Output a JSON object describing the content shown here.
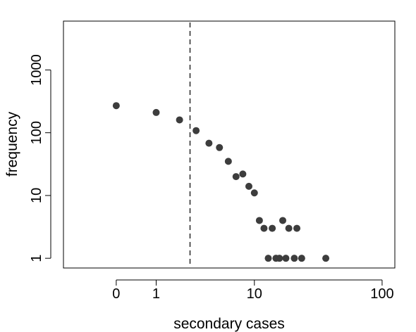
{
  "chart_data": {
    "type": "scatter",
    "title": "",
    "xlabel": "secondary cases",
    "ylabel": "frequency",
    "x_scale": "log(x+1)",
    "y_scale": "log",
    "x_ticks": [
      0,
      1,
      10,
      100
    ],
    "x_tick_labels": [
      "0",
      "1",
      "10",
      "100"
    ],
    "y_ticks": [
      1,
      10,
      100,
      1000
    ],
    "y_tick_labels": [
      "1",
      "10",
      "100",
      "1000"
    ],
    "xlim": [
      -0.6,
      125
    ],
    "ylim": [
      0.7,
      6000
    ],
    "grid": false,
    "legend": "none",
    "reference_line": {
      "x": 2.6,
      "style": "dashed"
    },
    "point_color": "#3d3d3d",
    "points": [
      {
        "x": 0,
        "y": 270
      },
      {
        "x": 1,
        "y": 210
      },
      {
        "x": 2,
        "y": 160
      },
      {
        "x": 3,
        "y": 108
      },
      {
        "x": 4,
        "y": 68
      },
      {
        "x": 5,
        "y": 58
      },
      {
        "x": 6,
        "y": 35
      },
      {
        "x": 7,
        "y": 20
      },
      {
        "x": 8,
        "y": 22
      },
      {
        "x": 9,
        "y": 14
      },
      {
        "x": 10,
        "y": 11
      },
      {
        "x": 11,
        "y": 4
      },
      {
        "x": 12,
        "y": 3
      },
      {
        "x": 13,
        "y": 1
      },
      {
        "x": 14,
        "y": 3
      },
      {
        "x": 15,
        "y": 1
      },
      {
        "x": 16,
        "y": 1
      },
      {
        "x": 17,
        "y": 4
      },
      {
        "x": 18,
        "y": 1
      },
      {
        "x": 19,
        "y": 3
      },
      {
        "x": 21,
        "y": 1
      },
      {
        "x": 22,
        "y": 3
      },
      {
        "x": 24,
        "y": 1
      },
      {
        "x": 37,
        "y": 1
      }
    ]
  }
}
